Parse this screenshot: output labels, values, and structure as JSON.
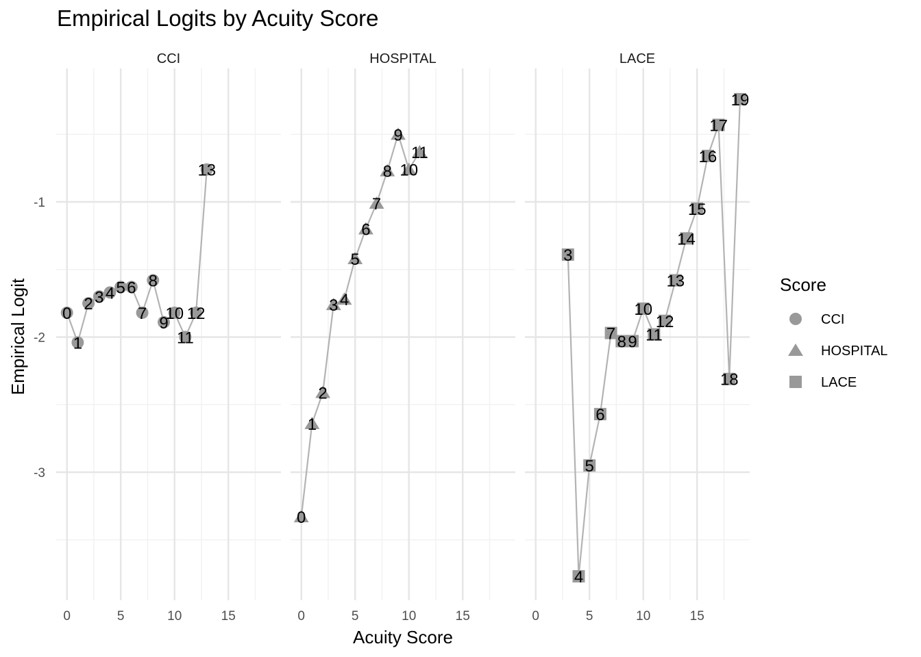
{
  "chart_data": {
    "type": "line",
    "title": "Empirical Logits by Acuity Score",
    "xlabel": "Acuity Score",
    "ylabel": "Empirical Logit",
    "xlim": [
      0,
      19
    ],
    "ylim": [
      -3.9,
      -0.3
    ],
    "x_ticks": [
      "0",
      "5",
      "10",
      "15"
    ],
    "y_ticks": [
      "-1",
      "-2",
      "-3"
    ],
    "grid": true,
    "legend": {
      "title": "Score",
      "position": "right",
      "entries": [
        {
          "label": "CCI",
          "shape": "circle"
        },
        {
          "label": "HOSPITAL",
          "shape": "triangle"
        },
        {
          "label": "LACE",
          "shape": "square"
        }
      ]
    },
    "point_color": "#999999",
    "line_color": "#b3b3b3",
    "panels": [
      {
        "name": "CCI",
        "shape": "circle",
        "x": [
          0,
          1,
          2,
          3,
          4,
          5,
          6,
          7,
          8,
          9,
          10,
          11,
          12,
          13
        ],
        "y": [
          -1.82,
          -2.04,
          -1.75,
          -1.7,
          -1.67,
          -1.63,
          -1.63,
          -1.82,
          -1.58,
          -1.89,
          -1.82,
          -2.0,
          -1.82,
          -0.76
        ]
      },
      {
        "name": "HOSPITAL",
        "shape": "triangle",
        "x": [
          0,
          1,
          2,
          3,
          4,
          5,
          6,
          7,
          8,
          9,
          10,
          11
        ],
        "y": [
          -3.33,
          -2.64,
          -2.41,
          -1.76,
          -1.72,
          -1.42,
          -1.2,
          -1.01,
          -0.77,
          -0.5,
          -0.76,
          -0.63
        ]
      },
      {
        "name": "LACE",
        "shape": "square",
        "x": [
          3,
          4,
          5,
          6,
          7,
          8,
          9,
          10,
          11,
          12,
          13,
          14,
          15,
          16,
          17,
          18,
          19
        ],
        "y": [
          -1.39,
          -3.77,
          -2.95,
          -2.57,
          -1.97,
          -2.03,
          -2.03,
          -1.79,
          -1.98,
          -1.88,
          -1.58,
          -1.27,
          -1.05,
          -0.66,
          -0.43,
          -2.31,
          -0.24
        ]
      }
    ]
  }
}
